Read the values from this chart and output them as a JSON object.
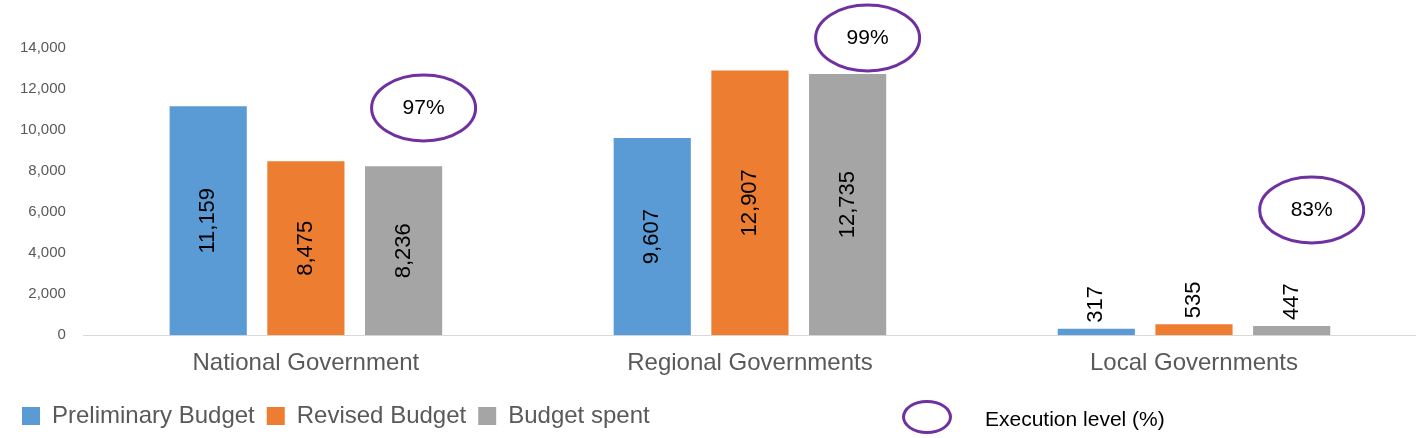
{
  "chart_data": {
    "type": "bar",
    "categories": [
      "National Government",
      "Regional Governments",
      "Local Governments"
    ],
    "series": [
      {
        "name": "Preliminary Budget",
        "color": "#5b9bd5",
        "values": [
          11159,
          9607,
          317
        ],
        "value_labels": [
          "11,159",
          "9,607",
          "317"
        ]
      },
      {
        "name": "Revised Budget",
        "color": "#ed7d31",
        "values": [
          8475,
          12907,
          535
        ],
        "value_labels": [
          "8,475",
          "12,907",
          "535"
        ]
      },
      {
        "name": "Budget spent",
        "color": "#a5a5a5",
        "values": [
          8236,
          12735,
          447
        ],
        "value_labels": [
          "8,236",
          "12,735",
          "447"
        ]
      }
    ],
    "ylim": [
      0,
      14000
    ],
    "yticks": [
      0,
      {
        "value": 2000,
        "label": "2,000"
      },
      {
        "value": 4000,
        "label": "4,000"
      },
      {
        "value": 6000,
        "label": "6,000"
      },
      {
        "value": 8000,
        "label": "8,000"
      },
      {
        "value": 10000,
        "label": "10,000"
      },
      {
        "value": 12000,
        "label": "12,000"
      },
      {
        "value": 14000,
        "label": "14,000"
      }
    ],
    "grid": false,
    "legend": "bottom",
    "annotations": [
      "97%",
      "99%",
      "83%",
      "Execution level (%)"
    ]
  }
}
